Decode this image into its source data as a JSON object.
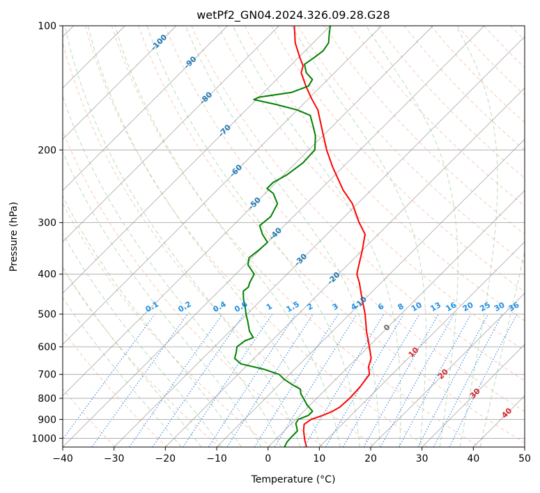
{
  "chart_data": {
    "type": "skew-t",
    "title": "wetPf2_GN04.2024.326.09.28.G28",
    "xlabel": "Temperature (°C)",
    "ylabel": "Pressure (hPa)",
    "xlim": [
      -40,
      50
    ],
    "ylim_hpa": [
      1050,
      100
    ],
    "x_ticks": [
      -40,
      -30,
      -20,
      -10,
      0,
      10,
      20,
      30,
      40,
      50
    ],
    "x_tick_labels": [
      "−40",
      "−30",
      "−20",
      "−10",
      "0",
      "10",
      "20",
      "30",
      "40",
      "50"
    ],
    "y_ticks": [
      1000,
      900,
      800,
      700,
      600,
      500,
      400,
      300,
      200,
      100
    ],
    "y_tick_labels": [
      "1000",
      "900",
      "800",
      "700",
      "600",
      "500",
      "400",
      "300",
      "200",
      "100"
    ],
    "temperature_isotherm_labels": [
      "-100",
      "-90",
      "-80",
      "-70",
      "-60",
      "-50",
      "-40",
      "-30",
      "-20",
      "-10",
      "0",
      "10",
      "20",
      "30",
      "40"
    ],
    "mixing_ratio_labels": [
      "0.1",
      "0.2",
      "0.4",
      "0.6",
      "1",
      "1.5",
      "2",
      "3",
      "4",
      "6",
      "8",
      "10",
      "13",
      "16",
      "20",
      "25",
      "30",
      "36"
    ],
    "series": [
      {
        "color": "#ff0000",
        "points": [
          {
            "p": 1050,
            "t": 7.5
          },
          {
            "p": 1010,
            "t": 5.8
          },
          {
            "p": 960,
            "t": 3.8
          },
          {
            "p": 925,
            "t": 2.6
          },
          {
            "p": 900,
            "t": 3.0
          },
          {
            "p": 880,
            "t": 4.5
          },
          {
            "p": 860,
            "t": 5.6
          },
          {
            "p": 840,
            "t": 6.2
          },
          {
            "p": 800,
            "t": 6.4
          },
          {
            "p": 750,
            "t": 6.2
          },
          {
            "p": 700,
            "t": 5.6
          },
          {
            "p": 670,
            "t": 3.9
          },
          {
            "p": 640,
            "t": 2.8
          },
          {
            "p": 600,
            "t": 0.2
          },
          {
            "p": 550,
            "t": -3.4
          },
          {
            "p": 500,
            "t": -7.0
          },
          {
            "p": 450,
            "t": -11.4
          },
          {
            "p": 420,
            "t": -14.2
          },
          {
            "p": 400,
            "t": -16.4
          },
          {
            "p": 380,
            "t": -17.8
          },
          {
            "p": 350,
            "t": -20.0
          },
          {
            "p": 320,
            "t": -22.6
          },
          {
            "p": 300,
            "t": -26.0
          },
          {
            "p": 270,
            "t": -31.0
          },
          {
            "p": 250,
            "t": -35.5
          },
          {
            "p": 220,
            "t": -42.0
          },
          {
            "p": 200,
            "t": -46.5
          },
          {
            "p": 180,
            "t": -51.0
          },
          {
            "p": 160,
            "t": -56.0
          },
          {
            "p": 150,
            "t": -59.5
          },
          {
            "p": 140,
            "t": -63.0
          },
          {
            "p": 130,
            "t": -66.5
          },
          {
            "p": 125,
            "t": -67.5
          },
          {
            "p": 120,
            "t": -69.5
          },
          {
            "p": 110,
            "t": -73.5
          },
          {
            "p": 100,
            "t": -77.0
          }
        ]
      },
      {
        "color": "#008000",
        "points": [
          {
            "p": 1050,
            "t": 3.2
          },
          {
            "p": 1020,
            "t": 2.7
          },
          {
            "p": 990,
            "t": 2.6
          },
          {
            "p": 960,
            "t": 2.6
          },
          {
            "p": 920,
            "t": 0.8
          },
          {
            "p": 900,
            "t": 0.5
          },
          {
            "p": 880,
            "t": 1.7
          },
          {
            "p": 860,
            "t": 1.7
          },
          {
            "p": 830,
            "t": -0.6
          },
          {
            "p": 800,
            "t": -2.6
          },
          {
            "p": 780,
            "t": -4.0
          },
          {
            "p": 760,
            "t": -5.0
          },
          {
            "p": 740,
            "t": -7.6
          },
          {
            "p": 720,
            "t": -10.0
          },
          {
            "p": 700,
            "t": -12.0
          },
          {
            "p": 680,
            "t": -16.0
          },
          {
            "p": 660,
            "t": -21.5
          },
          {
            "p": 640,
            "t": -23.8
          },
          {
            "p": 620,
            "t": -24.6
          },
          {
            "p": 600,
            "t": -25.6
          },
          {
            "p": 580,
            "t": -25.2
          },
          {
            "p": 570,
            "t": -24.2
          },
          {
            "p": 550,
            "t": -26.2
          },
          {
            "p": 520,
            "t": -28.5
          },
          {
            "p": 500,
            "t": -30.2
          },
          {
            "p": 480,
            "t": -31.8
          },
          {
            "p": 460,
            "t": -33.6
          },
          {
            "p": 440,
            "t": -35.2
          },
          {
            "p": 430,
            "t": -35.0
          },
          {
            "p": 420,
            "t": -35.6
          },
          {
            "p": 400,
            "t": -36.4
          },
          {
            "p": 380,
            "t": -39.4
          },
          {
            "p": 365,
            "t": -40.6
          },
          {
            "p": 350,
            "t": -40.2
          },
          {
            "p": 335,
            "t": -40.0
          },
          {
            "p": 320,
            "t": -42.6
          },
          {
            "p": 305,
            "t": -44.8
          },
          {
            "p": 290,
            "t": -44.4
          },
          {
            "p": 270,
            "t": -45.6
          },
          {
            "p": 255,
            "t": -48.4
          },
          {
            "p": 248,
            "t": -50.6
          },
          {
            "p": 240,
            "t": -50.6
          },
          {
            "p": 230,
            "t": -49.4
          },
          {
            "p": 215,
            "t": -48.6
          },
          {
            "p": 200,
            "t": -48.8
          },
          {
            "p": 185,
            "t": -51.4
          },
          {
            "p": 175,
            "t": -53.8
          },
          {
            "p": 165,
            "t": -56.4
          },
          {
            "p": 160,
            "t": -60.0
          },
          {
            "p": 155,
            "t": -65.4
          },
          {
            "p": 151,
            "t": -70.5
          },
          {
            "p": 149,
            "t": -70.0
          },
          {
            "p": 145,
            "t": -64.5
          },
          {
            "p": 140,
            "t": -62.5
          },
          {
            "p": 135,
            "t": -63.0
          },
          {
            "p": 130,
            "t": -65.5
          },
          {
            "p": 127,
            "t": -66.5
          },
          {
            "p": 124,
            "t": -67.5
          },
          {
            "p": 120,
            "t": -67.0
          },
          {
            "p": 115,
            "t": -66.5
          },
          {
            "p": 110,
            "t": -67.0
          },
          {
            "p": 105,
            "t": -68.5
          },
          {
            "p": 100,
            "t": -70.0
          }
        ]
      }
    ]
  }
}
